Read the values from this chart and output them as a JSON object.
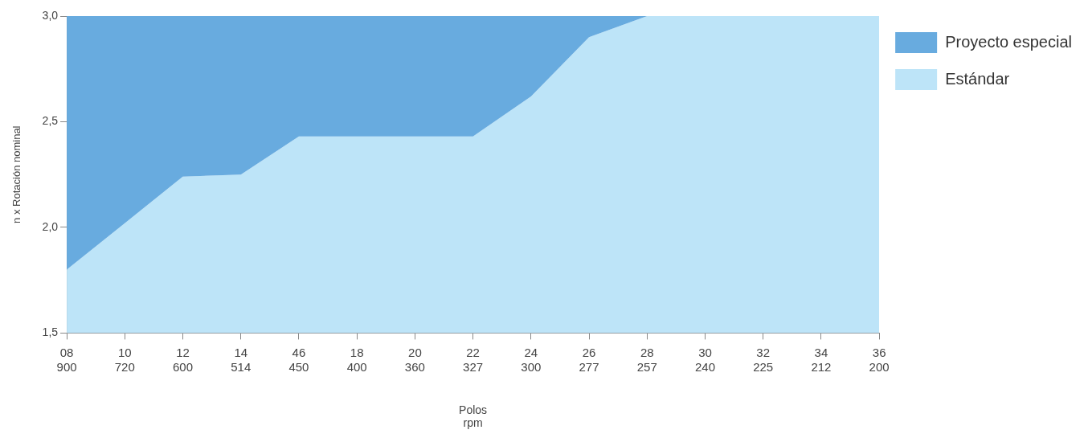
{
  "chart_data": {
    "type": "area",
    "xlabel": "Polos\nrpm",
    "ylabel": "n x Rotación nominal",
    "categories": [
      "08\n900",
      "10\n720",
      "12\n600",
      "14\n514",
      "46\n450",
      "18\n400",
      "20\n360",
      "22\n327",
      "24\n300",
      "26\n277",
      "28\n257",
      "30\n240",
      "32\n225",
      "34\n212",
      "36\n200"
    ],
    "series": [
      {
        "name": "Proyecto especial",
        "color": "#68abdf",
        "values": [
          3.0,
          3.0,
          3.0,
          3.0,
          3.0,
          3.0,
          3.0,
          3.0,
          3.0,
          3.0,
          3.0,
          3.0,
          3.0,
          3.0,
          3.0
        ]
      },
      {
        "name": "Estándar",
        "color": "#bde4f8",
        "values": [
          1.8,
          2.02,
          2.24,
          2.25,
          2.43,
          2.43,
          2.43,
          2.43,
          2.62,
          2.9,
          3.0,
          3.0,
          3.0,
          3.0,
          3.0
        ]
      }
    ],
    "ylim": [
      1.5,
      3.0
    ],
    "yticks": [
      {
        "value": 1.5,
        "label": "1,5"
      },
      {
        "value": 2.0,
        "label": "2,0"
      },
      {
        "value": 2.5,
        "label": "2,5"
      },
      {
        "value": 3.0,
        "label": "3,0"
      }
    ],
    "legend": "top right",
    "grid": false
  }
}
